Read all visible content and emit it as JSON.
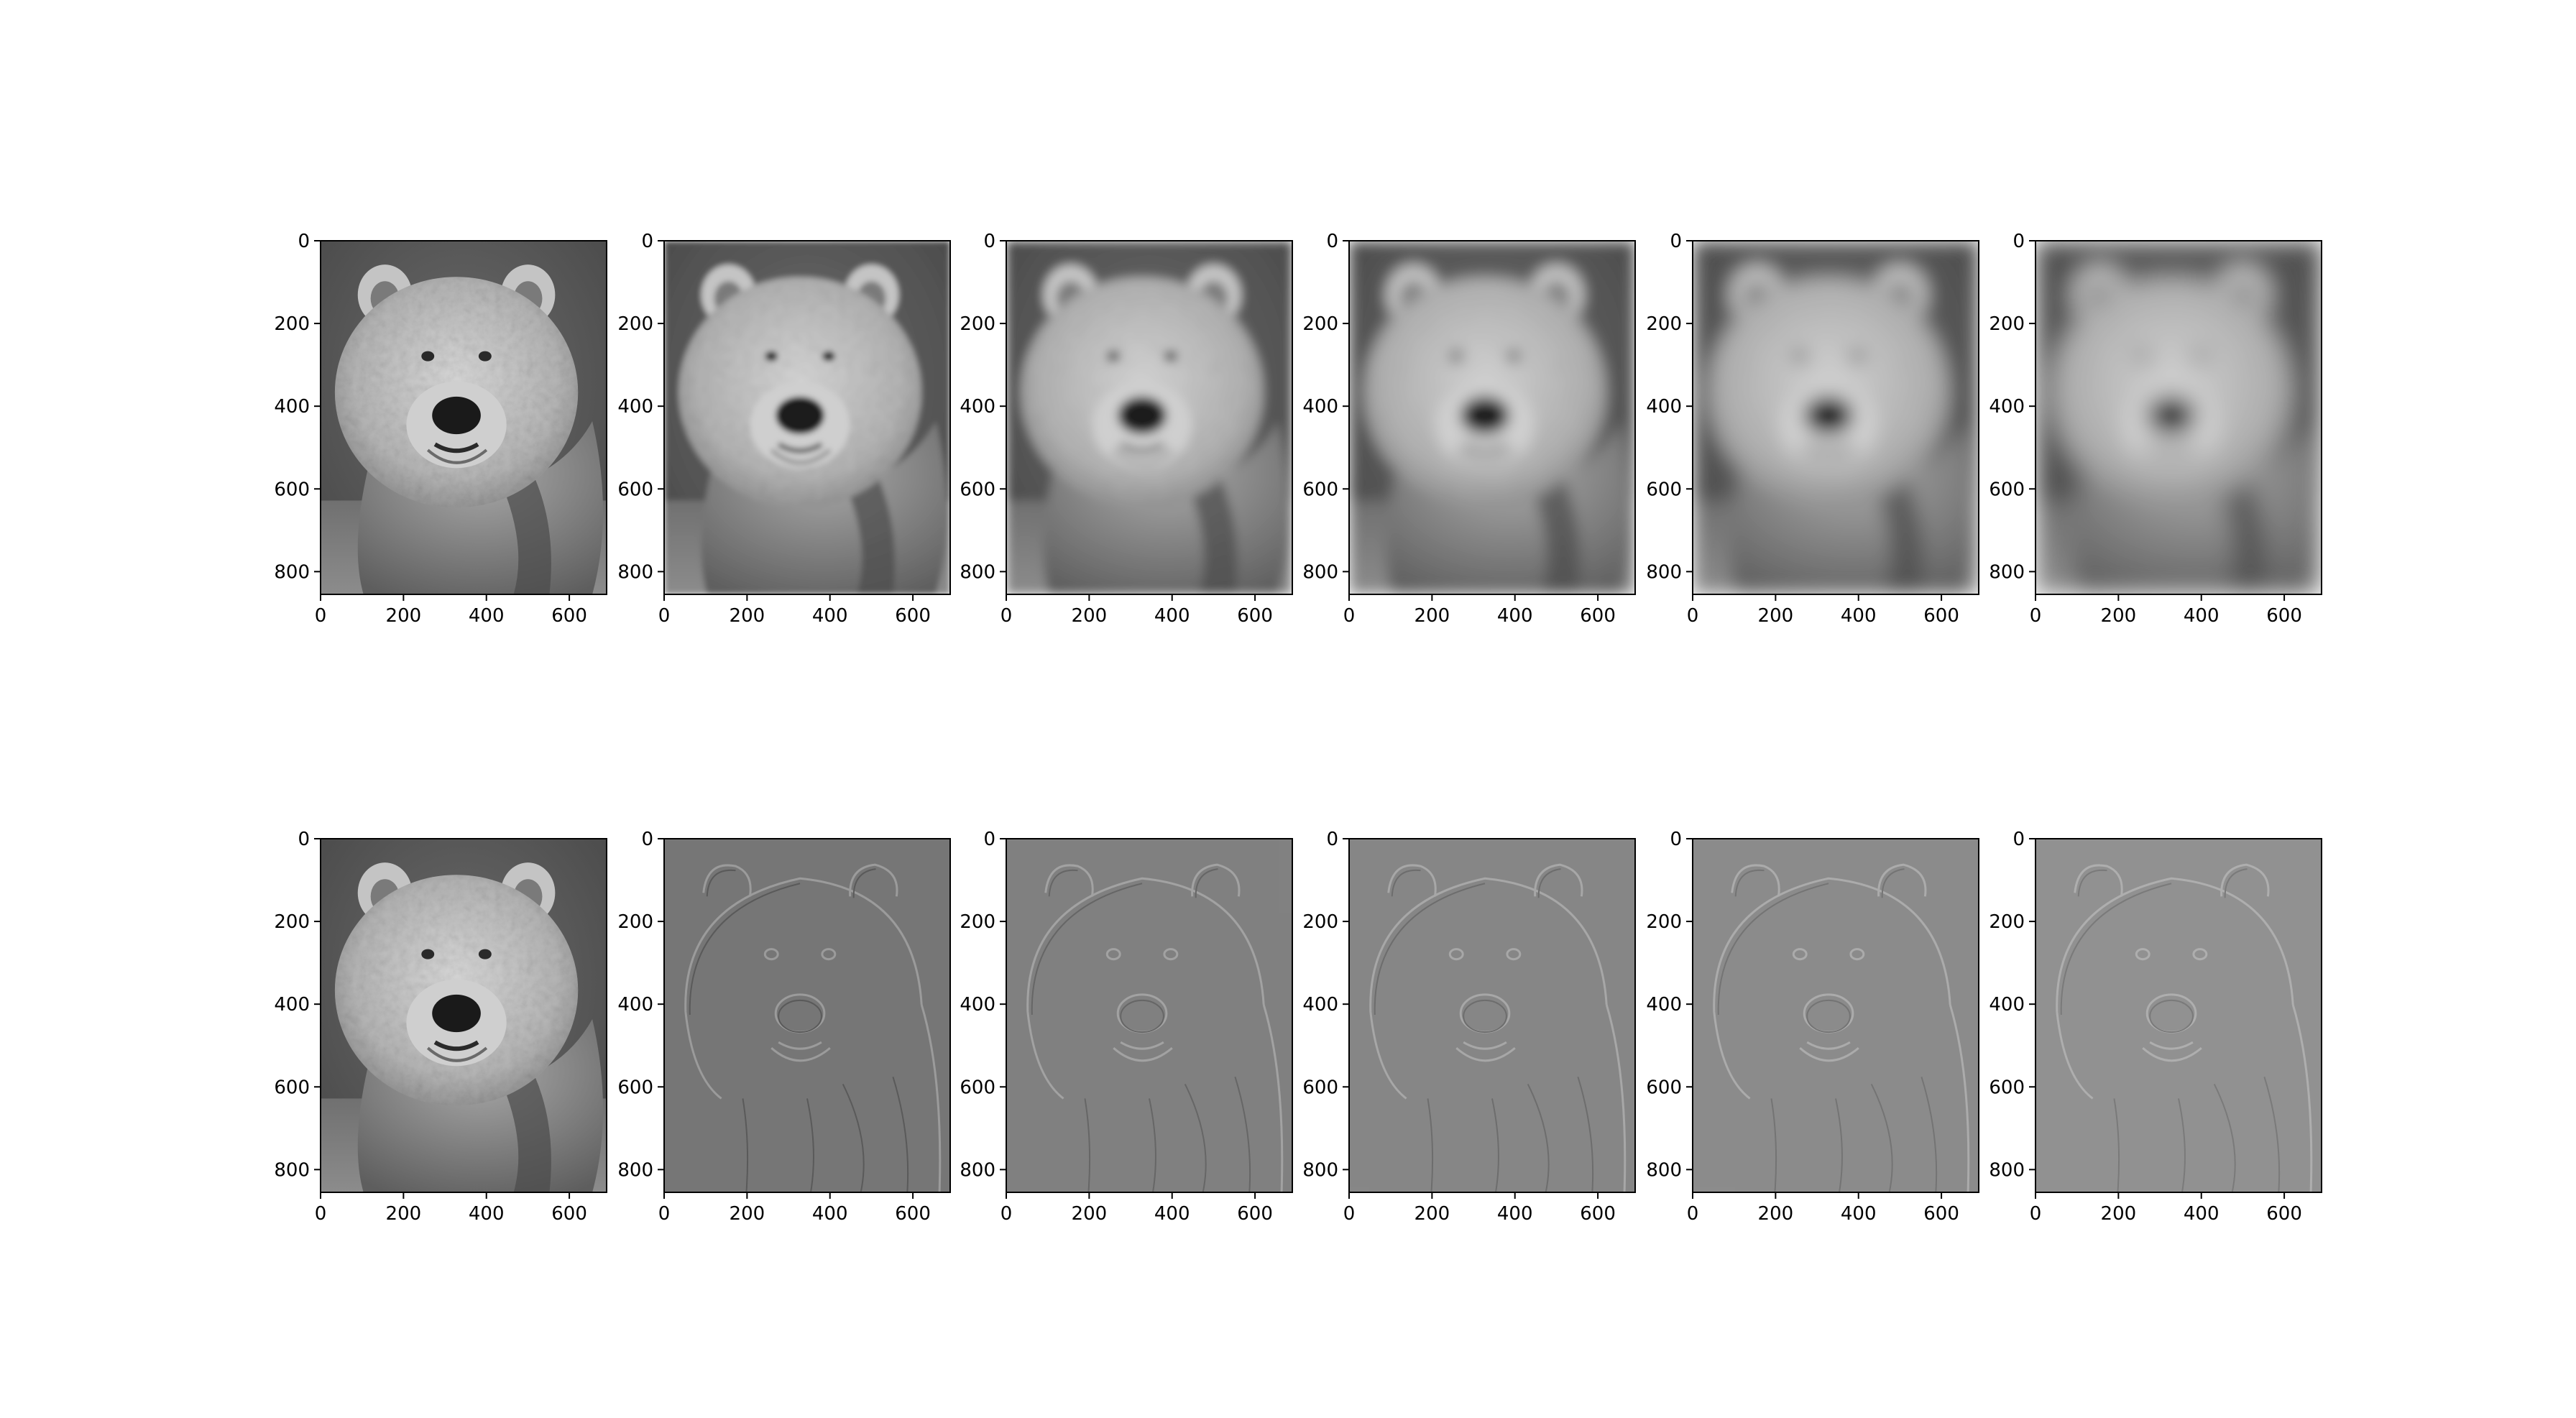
{
  "figure": {
    "background": "#ffffff",
    "rows": [
      {
        "name": "gaussian-stack",
        "panels": [
          {
            "image": "bear-grayscale-original",
            "blur_level": 0
          },
          {
            "image": "bear-grayscale-blurred",
            "blur_level": 1
          },
          {
            "image": "bear-grayscale-blurred",
            "blur_level": 2
          },
          {
            "image": "bear-grayscale-blurred",
            "blur_level": 3
          },
          {
            "image": "bear-grayscale-blurred",
            "blur_level": 4
          },
          {
            "image": "bear-grayscale-blurred",
            "blur_level": 5
          }
        ]
      },
      {
        "name": "laplacian-stack",
        "panels": [
          {
            "image": "bear-grayscale-original",
            "blur_level": 0
          },
          {
            "image": "bear-edge-detail",
            "blur_level": 1
          },
          {
            "image": "bear-edge-detail",
            "blur_level": 2
          },
          {
            "image": "bear-edge-detail",
            "blur_level": 3
          },
          {
            "image": "bear-edge-detail",
            "blur_level": 4
          },
          {
            "image": "bear-edge-detail",
            "blur_level": 5
          }
        ]
      }
    ],
    "axes": {
      "x_ticks": [
        "0",
        "200",
        "400",
        "600"
      ],
      "y_ticks": [
        "0",
        "200",
        "400",
        "600",
        "800"
      ],
      "x_range": [
        0,
        690
      ],
      "y_range": [
        0,
        855
      ]
    },
    "colors": {
      "fur_light": "#d6d6d6",
      "fur_mid": "#9a9a9a",
      "background_dark": "#555555",
      "edge_gray": "#7a7a7a",
      "nose": "#1a1a1a"
    }
  }
}
